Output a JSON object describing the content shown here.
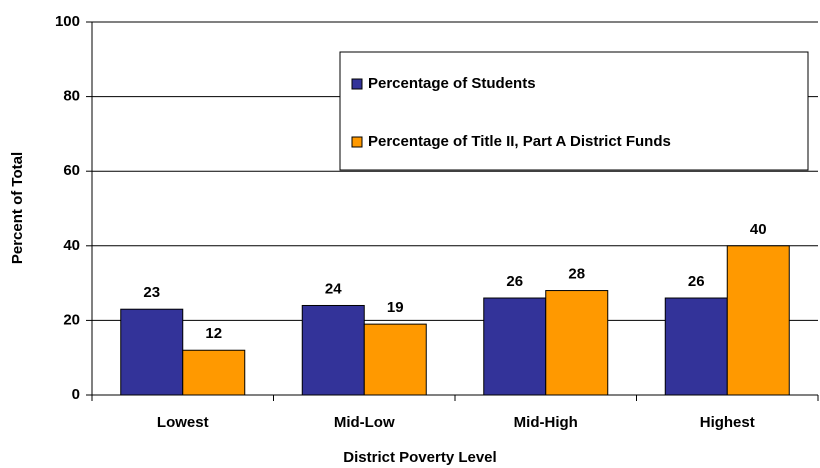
{
  "chart_data": {
    "type": "bar",
    "xlabel": "District Poverty Level",
    "ylabel": "Percent of Total",
    "categories": [
      "Lowest",
      "Mid-Low",
      "Mid-High",
      "Highest"
    ],
    "series": [
      {
        "name": "Percentage of Students",
        "color": "#333399",
        "values": [
          23,
          24,
          26,
          26
        ]
      },
      {
        "name": "Percentage of Title II, Part A District Funds",
        "color": "#ff9900",
        "values": [
          12,
          19,
          28,
          40
        ]
      }
    ],
    "ylim": [
      0,
      100
    ],
    "yticks": [
      0,
      20,
      40,
      60,
      80,
      100
    ],
    "grid": true,
    "legend": "upper right"
  }
}
